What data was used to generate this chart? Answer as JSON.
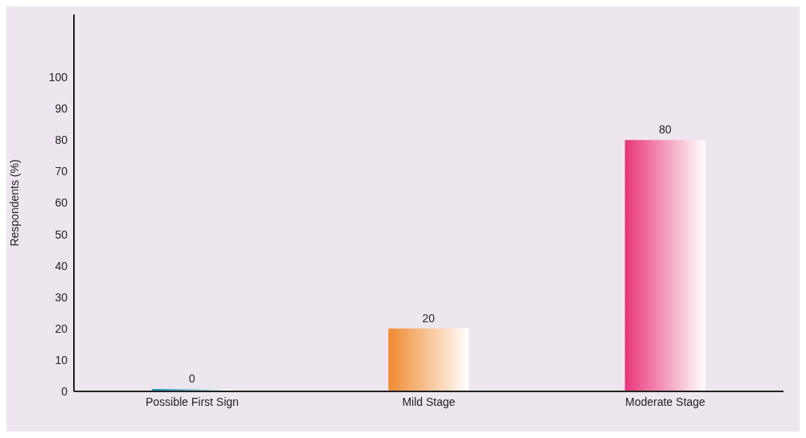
{
  "chart_data": {
    "type": "bar",
    "ylabel": "Respondents (%)",
    "categories": [
      "Possible First Sign",
      "Mild Stage",
      "Moderate Stage"
    ],
    "values": [
      0,
      20,
      80
    ],
    "colors": [
      "#1a8fb5",
      "#f08a30",
      "#e8357a"
    ],
    "ylim": [
      0,
      120
    ],
    "yticks": [
      0,
      10,
      20,
      30,
      40,
      50,
      60,
      70,
      80,
      90,
      100
    ],
    "data_labels": true,
    "grid": false,
    "legend": false
  }
}
